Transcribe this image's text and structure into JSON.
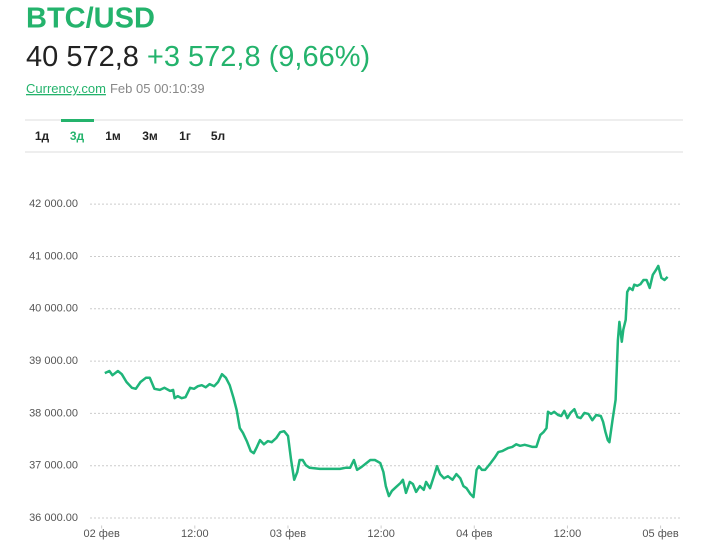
{
  "header": {
    "price": "40 572,8",
    "change": "+3 572,8 (9,66%)",
    "source": "Currency.com",
    "timestamp": "Feb 05 00:10:39",
    "tabs": [
      "1д",
      "3д",
      "1м",
      "3м",
      "1г",
      "5л"
    ],
    "active_tab": 1
  },
  "chart_data": {
    "type": "line",
    "title": "BTC/USD",
    "color": "#1fb57a",
    "grid": true,
    "xlim": [
      -1.5,
      74.5
    ],
    "ylim": [
      35800,
      42500
    ],
    "yticks": [
      {
        "value": 36000,
        "label": "36 000.00"
      },
      {
        "value": 37000,
        "label": "37 000.00"
      },
      {
        "value": 38000,
        "label": "38 000.00"
      },
      {
        "value": 39000,
        "label": "39 000.00"
      },
      {
        "value": 40000,
        "label": "40 000.00"
      },
      {
        "value": 41000,
        "label": "41 000.00"
      },
      {
        "value": 42000,
        "label": "42 000.00"
      }
    ],
    "xticks": [
      {
        "value": 0,
        "label": "02 фев"
      },
      {
        "value": 12,
        "label": "12:00"
      },
      {
        "value": 24,
        "label": "03 фев"
      },
      {
        "value": 36,
        "label": "12:00"
      },
      {
        "value": 48,
        "label": "04 фев"
      },
      {
        "value": 60,
        "label": "12:00"
      },
      {
        "value": 72,
        "label": "05 фев"
      }
    ],
    "x": [
      0.4,
      1.0,
      1.4,
      2.1,
      2.6,
      3.2,
      3.9,
      4.4,
      5.0,
      5.7,
      6.2,
      6.8,
      7.5,
      8.1,
      8.8,
      9.2,
      9.4,
      9.8,
      10.3,
      10.8,
      11.4,
      11.9,
      12.4,
      12.9,
      13.4,
      13.9,
      14.5,
      15.0,
      15.5,
      16.0,
      16.5,
      17.0,
      17.4,
      17.8,
      18.2,
      18.7,
      19.2,
      19.6,
      20.0,
      20.4,
      20.9,
      21.4,
      21.9,
      22.5,
      23.0,
      23.5,
      24.0,
      24.4,
      24.8,
      25.2,
      25.5,
      25.9,
      26.3,
      26.8,
      28.1,
      29.4,
      30.7,
      31.4,
      32.0,
      32.5,
      32.9,
      33.5,
      34.1,
      34.6,
      35.2,
      35.9,
      36.3,
      36.6,
      37.0,
      37.4,
      37.9,
      38.5,
      38.8,
      39.2,
      39.7,
      40.1,
      40.5,
      41.0,
      41.5,
      41.8,
      42.3,
      42.8,
      43.2,
      43.6,
      44.1,
      44.6,
      45.2,
      45.7,
      46.2,
      46.6,
      47.0,
      47.5,
      47.9,
      48.3,
      48.6,
      49.0,
      49.4,
      50.1,
      50.6,
      51.1,
      51.6,
      52.4,
      52.9,
      53.4,
      53.9,
      54.5,
      55.0,
      55.5,
      56.0,
      56.5,
      56.9,
      57.3,
      57.5,
      57.9,
      58.3,
      58.8,
      59.2,
      59.6,
      60.0,
      60.4,
      60.9,
      61.3,
      61.7,
      62.2,
      62.7,
      63.2,
      63.7,
      64.3,
      64.6,
      64.9,
      65.2,
      65.4,
      65.8,
      66.2,
      66.5,
      66.7,
      67.0,
      67.2,
      67.5,
      67.7,
      68.0,
      68.4,
      68.6,
      69.0,
      69.4,
      69.8,
      70.2,
      70.6,
      71.0,
      71.4,
      71.7,
      72.1,
      72.5,
      72.9
    ],
    "values": [
      38770,
      38810,
      38730,
      38810,
      38750,
      38600,
      38490,
      38470,
      38600,
      38680,
      38680,
      38470,
      38450,
      38490,
      38430,
      38450,
      38290,
      38330,
      38290,
      38310,
      38490,
      38470,
      38520,
      38540,
      38500,
      38560,
      38520,
      38600,
      38750,
      38680,
      38540,
      38290,
      38060,
      37720,
      37630,
      37470,
      37280,
      37240,
      37360,
      37490,
      37410,
      37470,
      37450,
      37530,
      37640,
      37660,
      37570,
      37110,
      36730,
      36880,
      37110,
      37110,
      37010,
      36960,
      36940,
      36940,
      36940,
      36960,
      36960,
      37110,
      36920,
      36980,
      37050,
      37110,
      37110,
      37050,
      36880,
      36610,
      36420,
      36520,
      36590,
      36670,
      36730,
      36480,
      36690,
      36650,
      36500,
      36610,
      36540,
      36690,
      36570,
      36800,
      36990,
      36840,
      36760,
      36800,
      36730,
      36840,
      36760,
      36610,
      36570,
      36460,
      36400,
      36920,
      36990,
      36920,
      36920,
      37050,
      37150,
      37260,
      37280,
      37340,
      37360,
      37410,
      37380,
      37400,
      37380,
      37360,
      37360,
      37590,
      37640,
      37720,
      38030,
      37990,
      38030,
      37970,
      37950,
      38050,
      37910,
      38010,
      38080,
      37930,
      37910,
      38010,
      37990,
      37870,
      37970,
      37950,
      37840,
      37640,
      37490,
      37450,
      37870,
      38260,
      39400,
      39750,
      39370,
      39600,
      39790,
      40320,
      40400,
      40360,
      40460,
      40440,
      40470,
      40550,
      40550,
      40400,
      40650,
      40740,
      40820,
      40590,
      40550,
      40610
    ]
  }
}
